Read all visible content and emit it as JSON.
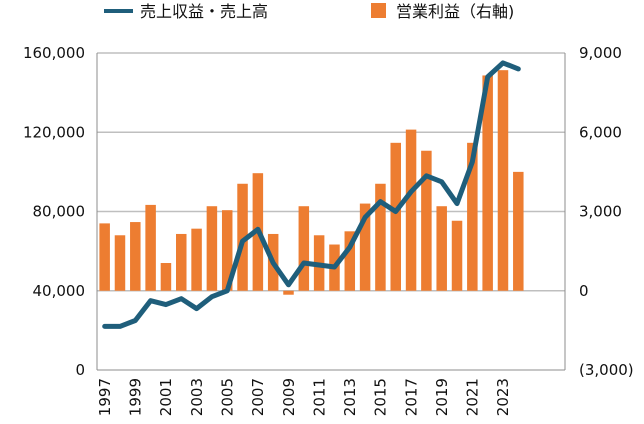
{
  "chart_data": {
    "type": "bar+line",
    "title": "",
    "colors": {
      "bars": "#ED7D31",
      "line": "#1F5E7B",
      "grid": "#BFBFBF",
      "axis": "#8C8C8C"
    },
    "legend": {
      "placement": "top",
      "line_label": "売上収益・売上高",
      "bar_label": "営業利益（右軸)"
    },
    "categories": [
      "1997",
      "1998",
      "1999",
      "2000",
      "2001",
      "2002",
      "2003",
      "2004",
      "2005",
      "2006",
      "2007",
      "2008",
      "2009",
      "2010",
      "2011",
      "2012",
      "2013",
      "2014",
      "2015",
      "2016",
      "2017",
      "2018",
      "2019",
      "2020",
      "2021",
      "2022",
      "2023",
      "2024"
    ],
    "x_tick_labels": [
      "1997",
      "1999",
      "2001",
      "2003",
      "2005",
      "2007",
      "2009",
      "2011",
      "2013",
      "2015",
      "2017",
      "2019",
      "2021",
      "2023"
    ],
    "y_left": {
      "ticks": [
        0,
        40000,
        80000,
        120000,
        160000
      ],
      "tick_labels": [
        "0",
        "40,000",
        "80,000",
        "120,000",
        "160,000"
      ],
      "ylim": [
        0,
        160000
      ]
    },
    "y_right": {
      "ticks": [
        -3000,
        0,
        3000,
        6000,
        9000
      ],
      "tick_labels": [
        "(3,000)",
        "0",
        "3,000",
        "6,000",
        "9,000"
      ],
      "ylim": [
        -3000,
        9000
      ]
    },
    "series": [
      {
        "name": "営業利益（右軸)",
        "type": "bar",
        "axis": "right",
        "values": [
          2550,
          2100,
          2600,
          3250,
          1050,
          2150,
          2350,
          3200,
          3050,
          4050,
          4450,
          2150,
          -150,
          3200,
          2100,
          1750,
          2250,
          3300,
          4050,
          5600,
          6100,
          5300,
          3200,
          2650,
          5600,
          8150,
          8350,
          4500
        ]
      },
      {
        "name": "売上収益・売上高",
        "type": "line",
        "axis": "left",
        "values": [
          22000,
          22000,
          25000,
          35000,
          33000,
          36000,
          31000,
          37000,
          40000,
          65000,
          71000,
          54000,
          43000,
          54000,
          53000,
          52000,
          62000,
          77000,
          85000,
          80000,
          90000,
          98000,
          95000,
          84000,
          105000,
          148000,
          155000,
          152000
        ]
      }
    ]
  }
}
